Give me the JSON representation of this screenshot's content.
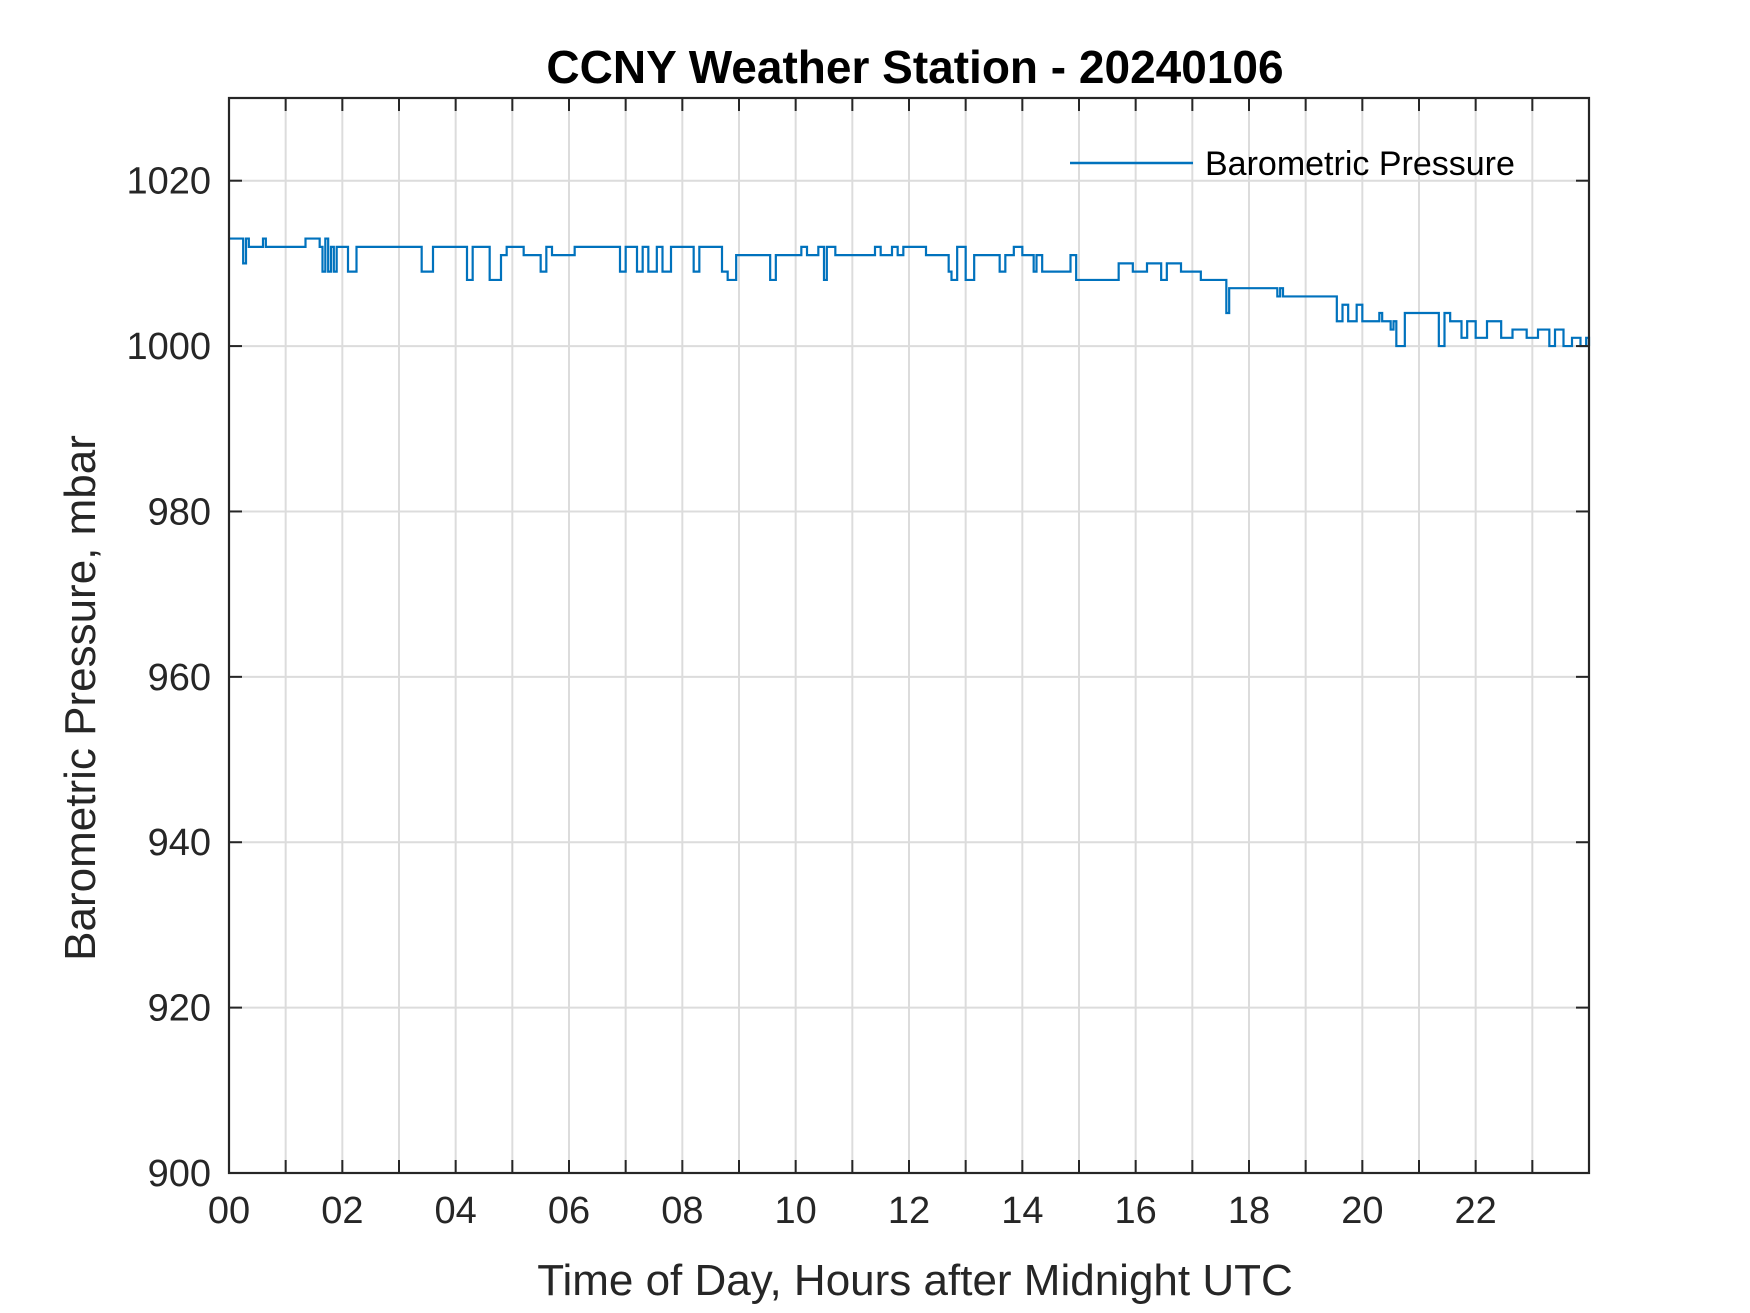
{
  "chart_data": {
    "type": "line",
    "title": "CCNY Weather Station - 20240106",
    "xlabel": "Time of Day, Hours after Midnight UTC",
    "ylabel": "Barometric Pressure, mbar",
    "xlim": [
      0,
      24
    ],
    "ylim": [
      900,
      1030
    ],
    "x_ticks": [
      0,
      2,
      4,
      6,
      8,
      10,
      12,
      14,
      16,
      18,
      20,
      22
    ],
    "x_tick_labels": [
      "00",
      "02",
      "04",
      "06",
      "08",
      "10",
      "12",
      "14",
      "16",
      "18",
      "20",
      "22"
    ],
    "x_minor_gridlines": [
      1,
      3,
      5,
      7,
      9,
      11,
      13,
      15,
      17,
      19,
      21,
      23
    ],
    "y_ticks": [
      900,
      920,
      940,
      960,
      980,
      1000,
      1020
    ],
    "y_tick_labels": [
      "900",
      "920",
      "940",
      "960",
      "980",
      "1000",
      "1020"
    ],
    "grid": true,
    "legend_position": "top-right",
    "series": [
      {
        "name": "Barometric Pressure",
        "color": "#0072BD",
        "x": [
          0,
          0.25,
          0.3,
          0.35,
          0.6,
          0.65,
          0.9,
          1.35,
          1.6,
          1.65,
          1.7,
          1.75,
          1.8,
          1.85,
          1.9,
          2.0,
          2.1,
          2.25,
          3.4,
          3.6,
          4.2,
          4.3,
          4.6,
          4.8,
          4.9,
          5.2,
          5.5,
          5.6,
          5.7,
          6.1,
          6.9,
          7.0,
          7.2,
          7.3,
          7.4,
          7.55,
          7.65,
          7.8,
          8.2,
          8.3,
          8.7,
          8.8,
          8.95,
          9.55,
          9.65,
          10.1,
          10.2,
          10.4,
          10.5,
          10.55,
          10.7,
          11.4,
          11.5,
          11.7,
          11.8,
          11.9,
          12.3,
          12.7,
          12.75,
          12.85,
          13.0,
          13.15,
          13.6,
          13.7,
          13.85,
          14.0,
          14.2,
          14.25,
          14.35,
          14.85,
          14.95,
          15.6,
          15.7,
          15.95,
          16.2,
          16.45,
          16.55,
          16.8,
          16.95,
          17.15,
          17.5,
          17.6,
          17.65,
          18.25,
          18.5,
          18.55,
          18.6,
          19.55,
          19.65,
          19.75,
          19.9,
          20.0,
          20.3,
          20.35,
          20.5,
          20.55,
          20.6,
          20.75,
          21.35,
          21.45,
          21.55,
          21.75,
          21.85,
          22.0,
          22.2,
          22.45,
          22.65,
          22.9,
          23.1,
          23.3,
          23.4,
          23.55,
          23.7,
          23.85,
          23.95,
          24.0
        ],
        "values": [
          1013,
          1010,
          1013,
          1012,
          1013,
          1012,
          1012,
          1013,
          1012,
          1009,
          1013,
          1009,
          1012,
          1009,
          1012,
          1012,
          1009,
          1012,
          1009,
          1012,
          1008,
          1012,
          1008,
          1011,
          1012,
          1011,
          1009,
          1012,
          1011,
          1012,
          1009,
          1012,
          1009,
          1012,
          1009,
          1012,
          1009,
          1012,
          1009,
          1012,
          1009,
          1008,
          1011,
          1008,
          1011,
          1012,
          1011,
          1012,
          1008,
          1012,
          1011,
          1012,
          1011,
          1012,
          1011,
          1012,
          1011,
          1009,
          1008,
          1012,
          1008,
          1011,
          1009,
          1011,
          1012,
          1011,
          1009,
          1011,
          1009,
          1011,
          1008,
          1008,
          1010,
          1009,
          1010,
          1008,
          1010,
          1009,
          1009,
          1008,
          1008,
          1004,
          1007,
          1007,
          1006,
          1007,
          1006,
          1003,
          1005,
          1003,
          1005,
          1003,
          1004,
          1003,
          1002,
          1003,
          1000,
          1004,
          1000,
          1004,
          1003,
          1001,
          1003,
          1001,
          1003,
          1001,
          1002,
          1001,
          1002,
          1000,
          1002,
          1000,
          1001,
          1000,
          1001,
          1000
        ]
      }
    ]
  }
}
